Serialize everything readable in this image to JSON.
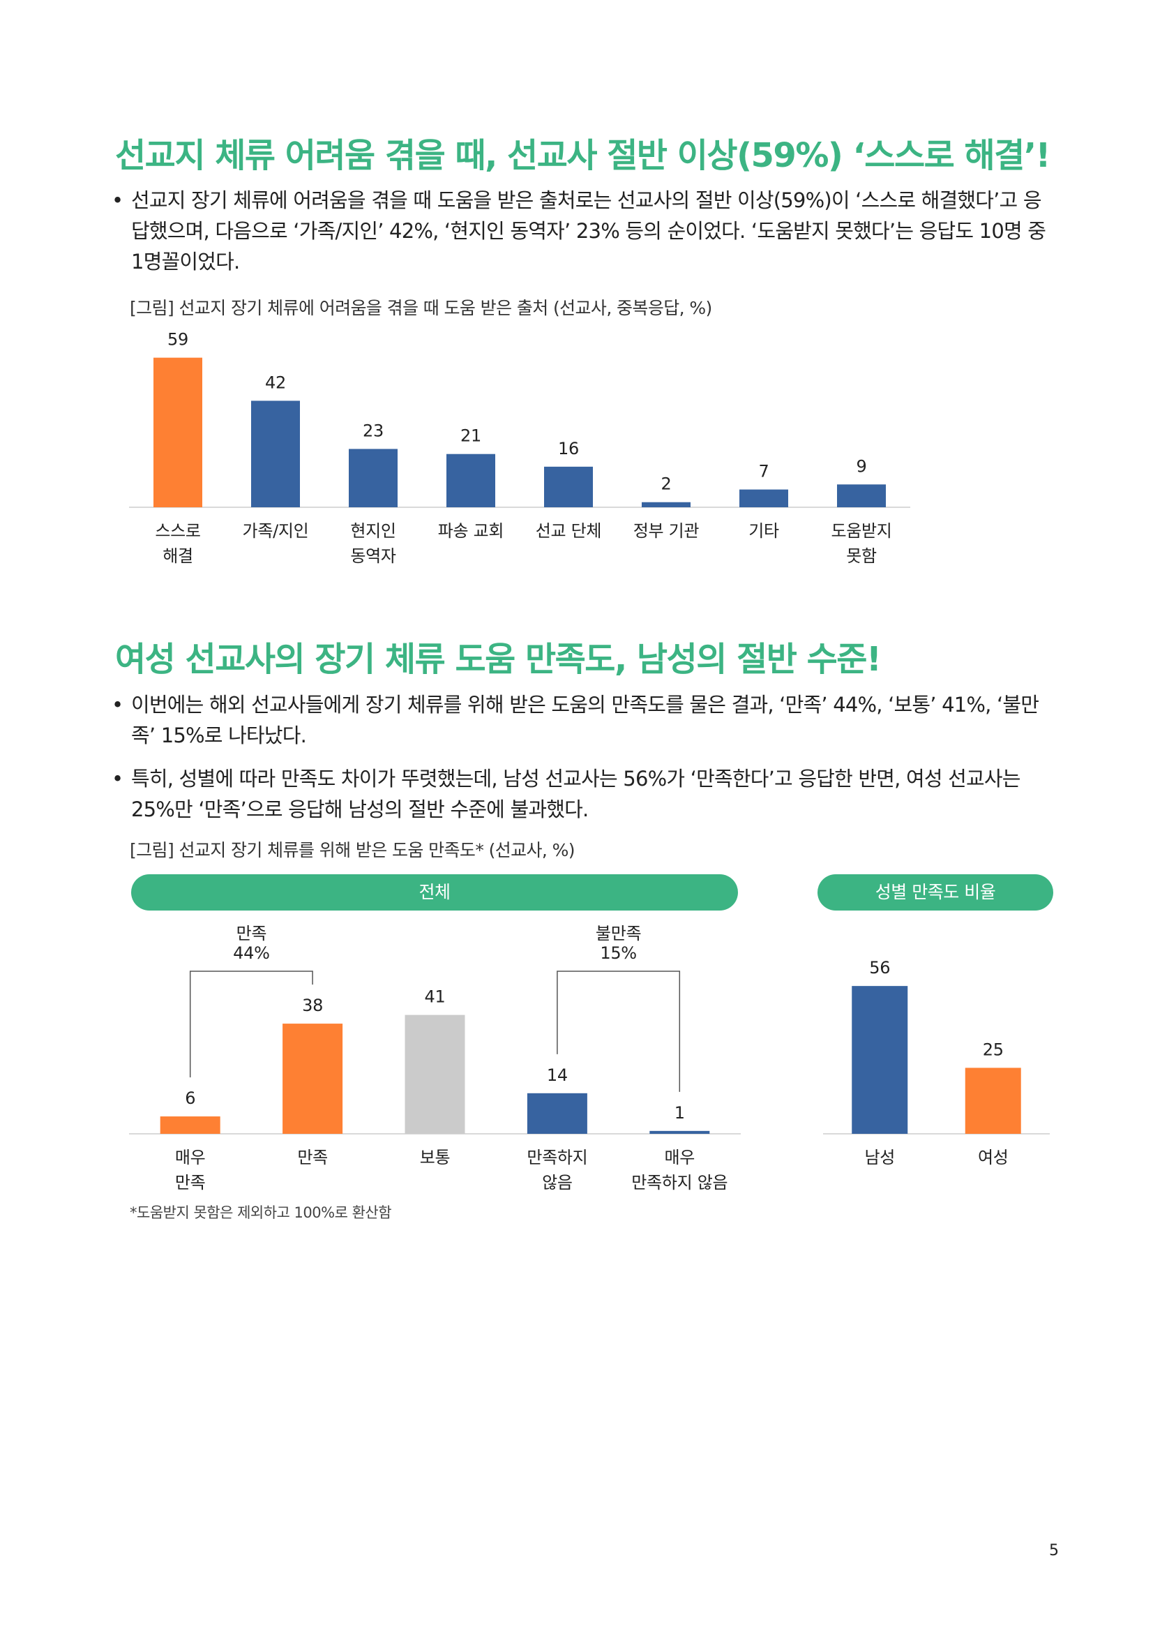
{
  "section1": {
    "heading": "선교지 체류 어려움 겪을 때, 선교사 절반 이상(59%) ‘스스로 해결’!",
    "bullets": [
      "선교지 장기 체류에 어려움을 겪을 때 도움을 받은 출처로는 선교사의 절반 이상(59%)이 ‘스스로 해결했다’고 응답했으며, 다음으로 ‘가족/지인’ 42%, ‘현지인 동역자’ 23% 등의 순이었다. ‘도움받지 못했다’는 응답도 10명 중 1명꼴이었다."
    ],
    "figure_title": "[그림] 선교지 장기 체류에 어려움을 겪을 때 도움 받은 출처 (선교사, 중복응답, %)"
  },
  "section2": {
    "heading": "여성 선교사의 장기 체류 도움 만족도, 남성의 절반 수준!",
    "bullets": [
      "이번에는 해외 선교사들에게 장기 체류를 위해 받은 도움의 만족도를 물은 결과, ‘만족’ 44%, ‘보통’ 41%, ‘불만족’ 15%로 나타났다.",
      "특히, 성별에 따라 만족도 차이가 뚜렷했는데, 남성 선교사는 56%가 ‘만족한다’고 응답한 반면, 여성 선교사는 25%만 ‘만족’으로 응답해 남성의 절반 수준에 불과했다."
    ],
    "figure_title": "[그림] 선교지 장기 체류를 위해 받은 도움 만족도* (선교사, %)",
    "pill_total": "전체",
    "pill_gender": "성별 만족도 비율",
    "footnote": "*도움받지 못함은 제외하고 100%로 환산함"
  },
  "page_number": "5",
  "colors": {
    "orange": "#fe8033",
    "blue": "#3763a0",
    "gray": "#cbcbcb",
    "green": "#3cb483",
    "axis": "#d9d9d9"
  },
  "chart_data": [
    {
      "type": "bar",
      "title": "[그림] 선교지 장기 체류에 어려움을 겪을 때 도움 받은 출처 (선교사, 중복응답, %)",
      "categories": [
        [
          "스스로",
          "해결"
        ],
        [
          "가족/지인"
        ],
        [
          "현지인",
          "동역자"
        ],
        [
          "파송 교회"
        ],
        [
          "선교 단체"
        ],
        [
          "정부 기관"
        ],
        [
          "기타"
        ],
        [
          "도움받지",
          "못함"
        ]
      ],
      "values": [
        59,
        42,
        23,
        21,
        16,
        2,
        7,
        9
      ],
      "bar_colors": [
        "orange",
        "blue",
        "blue",
        "blue",
        "blue",
        "blue",
        "blue",
        "blue"
      ],
      "ylim": [
        0,
        60
      ],
      "grid": false,
      "legend": "none"
    },
    {
      "type": "bar",
      "title": "전체",
      "categories": [
        [
          "매우",
          "만족"
        ],
        [
          "만족"
        ],
        [
          "보통"
        ],
        [
          "만족하지",
          "않음"
        ],
        [
          "매우",
          "만족하지 않음"
        ]
      ],
      "values": [
        6,
        38,
        41,
        14,
        1
      ],
      "bar_colors": [
        "orange",
        "orange",
        "gray",
        "blue",
        "blue"
      ],
      "ylim": [
        0,
        45
      ],
      "grid": false,
      "legend": "none",
      "groups": [
        {
          "label": "만족",
          "value": "44%",
          "from": 0,
          "to": 1
        },
        {
          "label": "불만족",
          "value": "15%",
          "from": 3,
          "to": 4
        }
      ]
    },
    {
      "type": "bar",
      "title": "성별 만족도 비율",
      "categories": [
        [
          "남성"
        ],
        [
          "여성"
        ]
      ],
      "values": [
        56,
        25
      ],
      "bar_colors": [
        "blue",
        "orange"
      ],
      "ylim": [
        0,
        60
      ],
      "grid": false,
      "legend": "none"
    }
  ]
}
